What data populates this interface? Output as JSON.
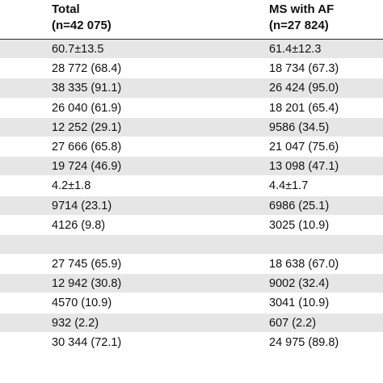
{
  "header": {
    "total_title": "Total",
    "total_n": "(n=42 075)",
    "ms_title": "MS with AF",
    "ms_n": "(n=27 824)"
  },
  "rows": [
    {
      "total": "60.7±13.5",
      "ms": "61.4±12.3"
    },
    {
      "total": "28 772 (68.4)",
      "ms": "18 734 (67.3)"
    },
    {
      "total": "38 335 (91.1)",
      "ms": "26 424 (95.0)"
    },
    {
      "total": "26 040 (61.9)",
      "ms": "18 201 (65.4)"
    },
    {
      "total": "12 252 (29.1)",
      "ms": "9586 (34.5)"
    },
    {
      "total": "27 666 (65.8)",
      "ms": "21 047 (75.6)"
    },
    {
      "total": "19 724 (46.9)",
      "ms": "13 098 (47.1)"
    },
    {
      "total": "4.2±1.8",
      "ms": "4.4±1.7"
    },
    {
      "total": "9714 (23.1)",
      "ms": "6986 (25.1)"
    },
    {
      "total": "4126 (9.8)",
      "ms": "3025 (10.9)"
    },
    {
      "total": "",
      "ms": ""
    },
    {
      "total": "27 745 (65.9)",
      "ms": "18 638 (67.0)"
    },
    {
      "total": "12 942 (30.8)",
      "ms": "9002 (32.4)"
    },
    {
      "total": "4570 (10.9)",
      "ms": "3041 (10.9)"
    },
    {
      "total": "932 (2.2)",
      "ms": "607 (2.2)"
    },
    {
      "total": "30 344 (72.1)",
      "ms": "24 975 (89.8)"
    }
  ]
}
